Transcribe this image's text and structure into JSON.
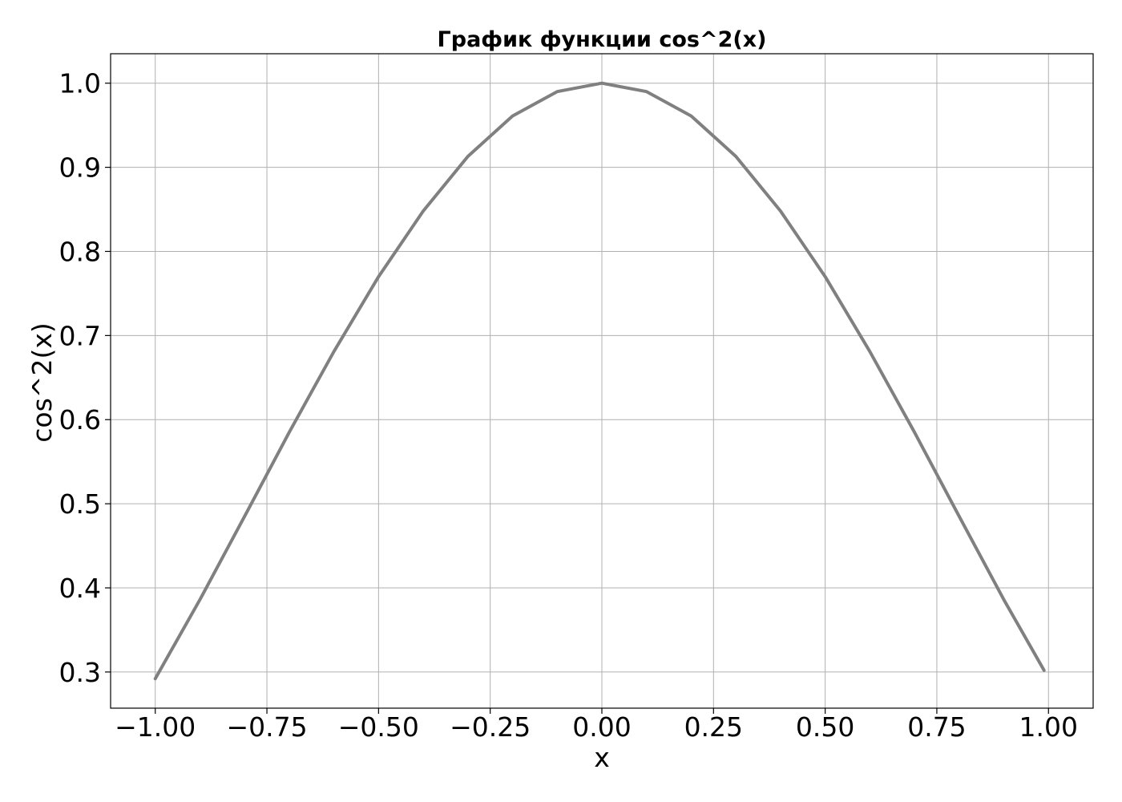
{
  "chart_data": {
    "type": "line",
    "title": "График функции cos^2(x)",
    "xlabel": "x",
    "ylabel": "cos^2(x)",
    "xlim": [
      -1.1,
      1.1
    ],
    "ylim": [
      0.257,
      1.035
    ],
    "grid": true,
    "legend": null,
    "x_ticks": [
      -1.0,
      -0.75,
      -0.5,
      -0.25,
      0.0,
      0.25,
      0.5,
      0.75,
      1.0
    ],
    "x_tick_labels": [
      "−1.00",
      "−0.75",
      "−0.50",
      "−0.25",
      "0.00",
      "0.25",
      "0.50",
      "0.75",
      "1.00"
    ],
    "y_ticks": [
      0.3,
      0.4,
      0.5,
      0.6,
      0.7,
      0.8,
      0.9,
      1.0
    ],
    "y_tick_labels": [
      "0.3",
      "0.4",
      "0.5",
      "0.6",
      "0.7",
      "0.8",
      "0.9",
      "1.0"
    ],
    "series": [
      {
        "function": "cos^2(x)",
        "color": "#808080",
        "x": [
          -1.0,
          -0.9,
          -0.8,
          -0.7,
          -0.6,
          -0.5,
          -0.4,
          -0.3,
          -0.2,
          -0.1,
          0.0,
          0.1,
          0.2,
          0.3,
          0.4,
          0.5,
          0.6,
          0.7,
          0.8,
          0.9,
          0.99
        ],
        "y": [
          0.292,
          0.386,
          0.485,
          0.585,
          0.681,
          0.77,
          0.848,
          0.913,
          0.961,
          0.99,
          1.0,
          0.99,
          0.961,
          0.913,
          0.848,
          0.77,
          0.681,
          0.585,
          0.485,
          0.386,
          0.302
        ]
      }
    ]
  }
}
